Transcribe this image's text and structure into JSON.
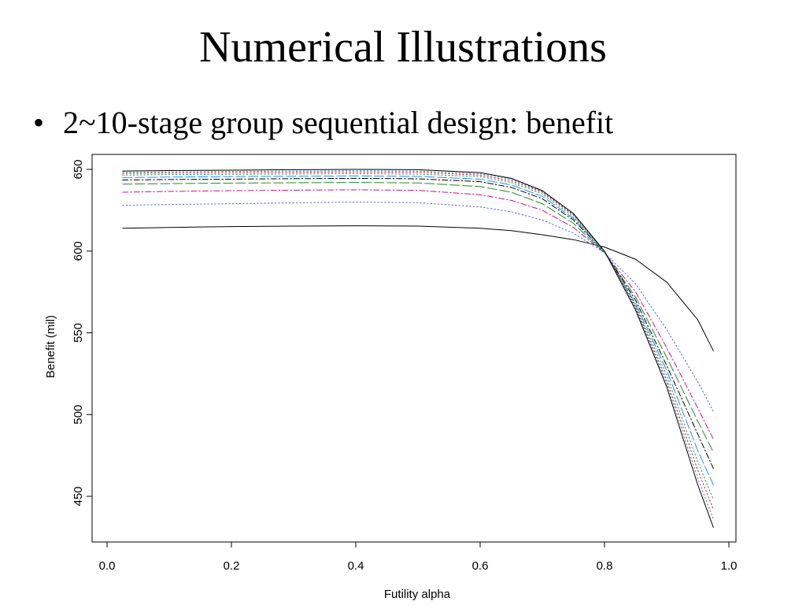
{
  "slide": {
    "title": "Numerical Illustrations",
    "bullet_symbol": "•",
    "bullet_text": "2~10-stage group sequential design: benefit"
  },
  "chart_data": {
    "type": "line",
    "title": "",
    "xlabel": "Futility alpha",
    "ylabel": "Benefit (mil)",
    "xlim": [
      0.0,
      1.0
    ],
    "ylim": [
      425,
      660
    ],
    "x_ticks": [
      0.0,
      0.2,
      0.4,
      0.6,
      0.8,
      1.0
    ],
    "x_tick_labels": [
      "0.0",
      "0.2",
      "0.4",
      "0.6",
      "0.8",
      "1.0"
    ],
    "y_ticks": [
      450,
      500,
      550,
      600,
      650
    ],
    "y_tick_labels": [
      "450",
      "500",
      "550",
      "600",
      "650"
    ],
    "grid": false,
    "legend": "none",
    "x": [
      0.025,
      0.1,
      0.2,
      0.3,
      0.4,
      0.5,
      0.6,
      0.65,
      0.7,
      0.75,
      0.8,
      0.85,
      0.9,
      0.95,
      0.975
    ],
    "series": [
      {
        "color": "#000000",
        "dash": "solid",
        "values": [
          614,
          614.5,
          615,
          615.3,
          615.5,
          615.3,
          614,
          612.5,
          610,
          607,
          602.5,
          595,
          581,
          558,
          539
        ]
      },
      {
        "color": "#4169E1",
        "dash": "dotted",
        "values": [
          628,
          628.5,
          629,
          629.5,
          630,
          629.6,
          627,
          624,
          619,
          611,
          599,
          580,
          552,
          520,
          502
        ]
      },
      {
        "color": "#C71585",
        "dash": "dashdot",
        "values": [
          636,
          636.5,
          637,
          637.3,
          637.5,
          637.2,
          634.5,
          631,
          625,
          614.5,
          599,
          575,
          541,
          504,
          485
        ]
      },
      {
        "color": "#228B22",
        "dash": "longdash",
        "values": [
          641,
          641.3,
          641.6,
          641.8,
          642,
          641.7,
          639.5,
          636,
          629,
          617,
          599,
          572,
          535,
          496,
          477
        ]
      },
      {
        "color": "#000000",
        "dash": "dashdot",
        "values": [
          643.5,
          643.8,
          644,
          644.3,
          644.5,
          644.2,
          642.5,
          639,
          632,
          619,
          599.5,
          570,
          530,
          488,
          467
        ]
      },
      {
        "color": "#1E90FF",
        "dash": "longdash",
        "values": [
          645,
          645.3,
          645.6,
          645.8,
          646,
          645.7,
          644,
          640.5,
          633.5,
          620,
          599.5,
          568,
          527,
          478,
          457
        ]
      },
      {
        "color": "#2E8B57",
        "dash": "dotted",
        "values": [
          646.5,
          646.8,
          647,
          647.2,
          647.4,
          647.1,
          645.5,
          642,
          635,
          621,
          600,
          567,
          524,
          471,
          448
        ]
      },
      {
        "color": "#B22222",
        "dash": "dotted",
        "values": [
          647.5,
          647.8,
          648,
          648.2,
          648.4,
          648.2,
          646.5,
          643,
          636,
          622,
          600,
          566,
          521,
          466,
          442
        ]
      },
      {
        "color": "#4682B4",
        "dash": "dotted",
        "values": [
          648.2,
          648.5,
          648.8,
          649,
          649.2,
          649,
          647.3,
          644,
          636.5,
          622.5,
          600,
          565,
          519,
          461,
          436
        ]
      },
      {
        "color": "#000000",
        "dash": "solid",
        "values": [
          649,
          649.3,
          649.5,
          649.8,
          650,
          649.8,
          648,
          644.5,
          637,
          623,
          600,
          564,
          517,
          457,
          431
        ]
      }
    ]
  }
}
